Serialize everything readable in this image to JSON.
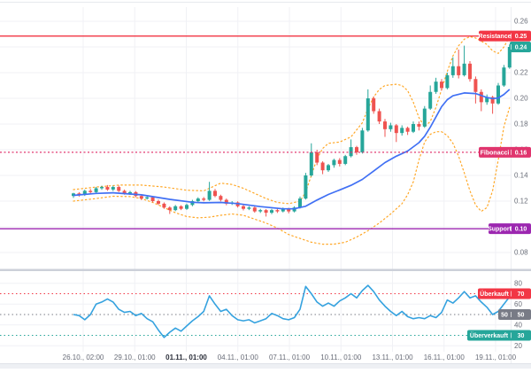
{
  "chart_data": {
    "type": "candlestick",
    "title": "",
    "legend_position": "none",
    "grid": true,
    "x_axis": {
      "labels": [
        "26.10., 02:00",
        "29.10., 01:00",
        "01.11., 01:00",
        "04.11., 01:00",
        "07.11., 01:00",
        "10.11., 01:00",
        "13.11., 01:00",
        "16.11., 01:00",
        "19.11., 01:00"
      ],
      "bold_label": "01.11., 01:00"
    },
    "price_pane": {
      "ylim": [
        0.075,
        0.27
      ],
      "y_ticks": [
        0.26,
        0.24,
        0.22,
        0.2,
        0.18,
        0.16,
        0.14,
        0.12,
        0.1,
        0.08
      ],
      "candles": [
        [
          0.124,
          0.1265,
          0.1225,
          0.126
        ],
        [
          0.126,
          0.127,
          0.1235,
          0.125
        ],
        [
          0.125,
          0.129,
          0.124,
          0.128
        ],
        [
          0.128,
          0.1295,
          0.126,
          0.127
        ],
        [
          0.127,
          0.131,
          0.1262,
          0.13
        ],
        [
          0.13,
          0.132,
          0.1288,
          0.131
        ],
        [
          0.131,
          0.1325,
          0.128,
          0.129
        ],
        [
          0.129,
          0.132,
          0.1278,
          0.131
        ],
        [
          0.131,
          0.1322,
          0.127,
          0.128
        ],
        [
          0.128,
          0.129,
          0.125,
          0.126
        ],
        [
          0.126,
          0.128,
          0.1248,
          0.127
        ],
        [
          0.127,
          0.1278,
          0.123,
          0.124
        ],
        [
          0.124,
          0.125,
          0.1208,
          0.122
        ],
        [
          0.122,
          0.124,
          0.1212,
          0.123
        ],
        [
          0.123,
          0.1238,
          0.119,
          0.12
        ],
        [
          0.12,
          0.1212,
          0.117,
          0.118
        ],
        [
          0.118,
          0.119,
          0.114,
          0.115
        ],
        [
          0.115,
          0.116,
          0.11,
          0.113
        ],
        [
          0.113,
          0.117,
          0.1122,
          0.116
        ],
        [
          0.116,
          0.1168,
          0.113,
          0.114
        ],
        [
          0.114,
          0.118,
          0.1132,
          0.117
        ],
        [
          0.117,
          0.121,
          0.116,
          0.12
        ],
        [
          0.12,
          0.123,
          0.119,
          0.122
        ],
        [
          0.122,
          0.1232,
          0.1198,
          0.121
        ],
        [
          0.121,
          0.135,
          0.1202,
          0.128
        ],
        [
          0.128,
          0.1295,
          0.123,
          0.124
        ],
        [
          0.124,
          0.125,
          0.1198,
          0.121
        ],
        [
          0.121,
          0.122,
          0.1168,
          0.118
        ],
        [
          0.118,
          0.12,
          0.117,
          0.119
        ],
        [
          0.119,
          0.1198,
          0.115,
          0.116
        ],
        [
          0.116,
          0.117,
          0.1128,
          0.114
        ],
        [
          0.114,
          0.116,
          0.113,
          0.115
        ],
        [
          0.115,
          0.1158,
          0.111,
          0.112
        ],
        [
          0.112,
          0.114,
          0.1108,
          0.113
        ],
        [
          0.113,
          0.1138,
          0.108,
          0.111
        ],
        [
          0.111,
          0.114,
          0.1098,
          0.113
        ],
        [
          0.113,
          0.1142,
          0.1108,
          0.112
        ],
        [
          0.112,
          0.115,
          0.1112,
          0.114
        ],
        [
          0.114,
          0.1148,
          0.1105,
          0.112
        ],
        [
          0.112,
          0.116,
          0.1112,
          0.115
        ],
        [
          0.115,
          0.1235,
          0.1142,
          0.122
        ],
        [
          0.122,
          0.142,
          0.1212,
          0.14
        ],
        [
          0.14,
          0.165,
          0.139,
          0.158
        ],
        [
          0.158,
          0.16,
          0.148,
          0.15
        ],
        [
          0.15,
          0.151,
          0.141,
          0.144
        ],
        [
          0.144,
          0.149,
          0.1428,
          0.148
        ],
        [
          0.148,
          0.153,
          0.146,
          0.152
        ],
        [
          0.152,
          0.1535,
          0.147,
          0.149
        ],
        [
          0.149,
          0.156,
          0.148,
          0.155
        ],
        [
          0.155,
          0.168,
          0.154,
          0.162
        ],
        [
          0.162,
          0.163,
          0.156,
          0.158
        ],
        [
          0.158,
          0.177,
          0.157,
          0.175
        ],
        [
          0.175,
          0.207,
          0.174,
          0.2
        ],
        [
          0.2,
          0.2015,
          0.188,
          0.19
        ],
        [
          0.19,
          0.192,
          0.18,
          0.182
        ],
        [
          0.182,
          0.184,
          0.17,
          0.176
        ],
        [
          0.176,
          0.181,
          0.174,
          0.179
        ],
        [
          0.179,
          0.18,
          0.166,
          0.173
        ],
        [
          0.173,
          0.179,
          0.171,
          0.177
        ],
        [
          0.177,
          0.178,
          0.1715,
          0.174
        ],
        [
          0.174,
          0.182,
          0.173,
          0.18
        ],
        [
          0.18,
          0.182,
          0.175,
          0.178
        ],
        [
          0.178,
          0.194,
          0.177,
          0.192
        ],
        [
          0.192,
          0.21,
          0.191,
          0.205
        ],
        [
          0.205,
          0.216,
          0.2035,
          0.213
        ],
        [
          0.213,
          0.215,
          0.206,
          0.208
        ],
        [
          0.208,
          0.22,
          0.207,
          0.218
        ],
        [
          0.218,
          0.232,
          0.216,
          0.225
        ],
        [
          0.225,
          0.238,
          0.2155,
          0.218
        ],
        [
          0.218,
          0.241,
          0.217,
          0.227
        ],
        [
          0.227,
          0.229,
          0.213,
          0.215
        ],
        [
          0.215,
          0.217,
          0.196,
          0.205
        ],
        [
          0.205,
          0.207,
          0.19,
          0.197
        ],
        [
          0.197,
          0.203,
          0.195,
          0.201
        ],
        [
          0.201,
          0.202,
          0.188,
          0.196
        ],
        [
          0.196,
          0.212,
          0.195,
          0.21
        ],
        [
          0.21,
          0.226,
          0.209,
          0.224
        ],
        [
          0.224,
          0.242,
          0.223,
          0.24
        ]
      ],
      "ma": [
        [
          0,
          0.1245
        ],
        [
          4,
          0.126
        ],
        [
          7,
          0.1265
        ],
        [
          12,
          0.1249
        ],
        [
          17,
          0.1214
        ],
        [
          21,
          0.1191
        ],
        [
          23,
          0.1187
        ],
        [
          26,
          0.119
        ],
        [
          29,
          0.1181
        ],
        [
          33,
          0.1157
        ],
        [
          37,
          0.114
        ],
        [
          39,
          0.1141
        ],
        [
          41,
          0.116
        ],
        [
          43,
          0.1208
        ],
        [
          45,
          0.1252
        ],
        [
          47,
          0.1287
        ],
        [
          49,
          0.1323
        ],
        [
          51,
          0.1369
        ],
        [
          53,
          0.1434
        ],
        [
          55,
          0.15
        ],
        [
          57,
          0.155
        ],
        [
          59,
          0.159
        ],
        [
          61,
          0.1655
        ],
        [
          62,
          0.1705
        ],
        [
          63,
          0.1775
        ],
        [
          64,
          0.1855
        ],
        [
          65,
          0.1935
        ],
        [
          66,
          0.199
        ],
        [
          67,
          0.202
        ],
        [
          69,
          0.2042
        ],
        [
          71,
          0.2037
        ],
        [
          73,
          0.2007
        ],
        [
          74,
          0.1998
        ],
        [
          75,
          0.2003
        ],
        [
          76,
          0.203
        ],
        [
          77,
          0.207
        ]
      ],
      "bb_upper": [
        [
          0,
          0.129
        ],
        [
          4,
          0.131
        ],
        [
          8,
          0.1325
        ],
        [
          12,
          0.1325
        ],
        [
          16,
          0.131
        ],
        [
          20,
          0.1285
        ],
        [
          23,
          0.128
        ],
        [
          25,
          0.132
        ],
        [
          26,
          0.134
        ],
        [
          28,
          0.133
        ],
        [
          30,
          0.13
        ],
        [
          32,
          0.126
        ],
        [
          34,
          0.122
        ],
        [
          36,
          0.119
        ],
        [
          38,
          0.118
        ],
        [
          40,
          0.12
        ],
        [
          41,
          0.127
        ],
        [
          42,
          0.14
        ],
        [
          43,
          0.153
        ],
        [
          44,
          0.161
        ],
        [
          45,
          0.165
        ],
        [
          47,
          0.166
        ],
        [
          49,
          0.17
        ],
        [
          51,
          0.181
        ],
        [
          52,
          0.192
        ],
        [
          53,
          0.201
        ],
        [
          54,
          0.207
        ],
        [
          55,
          0.21
        ],
        [
          57,
          0.211
        ],
        [
          58,
          0.21
        ],
        [
          59,
          0.206
        ],
        [
          60,
          0.197
        ],
        [
          61,
          0.185
        ],
        [
          62,
          0.178
        ],
        [
          63,
          0.182
        ],
        [
          64,
          0.193
        ],
        [
          65,
          0.207
        ],
        [
          66,
          0.221
        ],
        [
          67,
          0.233
        ],
        [
          68,
          0.241
        ],
        [
          69,
          0.246
        ],
        [
          70,
          0.248
        ],
        [
          71,
          0.247
        ],
        [
          73,
          0.242
        ],
        [
          74,
          0.237
        ],
        [
          75,
          0.235
        ],
        [
          76,
          0.24
        ],
        [
          77,
          0.248
        ]
      ],
      "bb_lower": [
        [
          0,
          0.12
        ],
        [
          4,
          0.122
        ],
        [
          7,
          0.1238
        ],
        [
          10,
          0.1235
        ],
        [
          12,
          0.122
        ],
        [
          14,
          0.119
        ],
        [
          16,
          0.115
        ],
        [
          18,
          0.111
        ],
        [
          20,
          0.108
        ],
        [
          22,
          0.107
        ],
        [
          24,
          0.1075
        ],
        [
          26,
          0.109
        ],
        [
          28,
          0.11
        ],
        [
          30,
          0.109
        ],
        [
          32,
          0.106
        ],
        [
          34,
          0.103
        ],
        [
          36,
          0.099
        ],
        [
          38,
          0.094
        ],
        [
          40,
          0.091
        ],
        [
          42,
          0.088
        ],
        [
          44,
          0.0865
        ],
        [
          46,
          0.0865
        ],
        [
          48,
          0.088
        ],
        [
          50,
          0.092
        ],
        [
          52,
          0.097
        ],
        [
          54,
          0.103
        ],
        [
          56,
          0.11
        ],
        [
          58,
          0.118
        ],
        [
          59,
          0.125
        ],
        [
          60,
          0.135
        ],
        [
          61,
          0.152
        ],
        [
          62,
          0.166
        ],
        [
          63,
          0.172
        ],
        [
          64,
          0.174
        ],
        [
          65,
          0.174
        ],
        [
          66,
          0.171
        ],
        [
          67,
          0.165
        ],
        [
          68,
          0.155
        ],
        [
          69,
          0.142
        ],
        [
          70,
          0.128
        ],
        [
          71,
          0.117
        ],
        [
          72,
          0.112
        ],
        [
          73,
          0.115
        ],
        [
          74,
          0.128
        ],
        [
          75,
          0.152
        ],
        [
          76,
          0.178
        ],
        [
          77,
          0.193
        ]
      ],
      "levels": [
        {
          "name": "Resistance",
          "value": "0.25",
          "price": 0.2485,
          "color": "#f23645",
          "style": "solid"
        },
        {
          "name": "Fibonacci",
          "value": "0.16",
          "price": 0.158,
          "color": "#e0356e",
          "style": "dashed"
        },
        {
          "name": "Support",
          "value": "0.10",
          "price": 0.0985,
          "color": "#9c27b0",
          "style": "solid"
        }
      ],
      "last_price": {
        "value": "0.24",
        "price": 0.24,
        "color": "#26a69a"
      }
    },
    "rsi_pane": {
      "ylim": [
        15,
        85
      ],
      "y_ticks": [
        80,
        60,
        40,
        20
      ],
      "values": [
        50,
        49,
        45,
        50,
        60,
        62,
        65,
        62,
        55,
        52,
        53,
        49,
        51,
        46,
        43,
        35,
        28,
        33,
        37,
        34,
        39,
        44,
        48,
        53,
        68,
        60,
        53,
        55,
        49,
        45,
        44,
        45,
        42,
        44,
        46,
        51,
        49,
        46,
        45,
        47,
        55,
        77,
        70,
        62,
        58,
        61,
        58,
        63,
        66,
        70,
        66,
        73,
        78,
        72,
        64,
        58,
        53,
        49,
        53,
        48,
        46,
        47,
        46,
        49,
        47,
        52,
        64,
        61,
        66,
        72,
        66,
        68,
        62,
        57,
        50,
        53,
        60,
        67
      ],
      "levels": [
        {
          "name": "Überkauft",
          "value": "70",
          "level": 70,
          "color": "#f23645"
        },
        {
          "name": "50",
          "value": "50",
          "level": 50,
          "color": "#787b86"
        },
        {
          "name": "Überverkauft",
          "value": "30",
          "level": 30,
          "color": "#26a69a"
        }
      ]
    },
    "colors": {
      "up": "#26a69a",
      "down": "#ef5350",
      "ma_line": "#4070f4",
      "bollinger": "#ffa726",
      "rsi_line": "#35a2df",
      "grid": "#f0f1f5",
      "axis_text": "#696d78",
      "axis_text_bold": "#2a2e39",
      "pane_separator": "#ccd0d9"
    }
  }
}
